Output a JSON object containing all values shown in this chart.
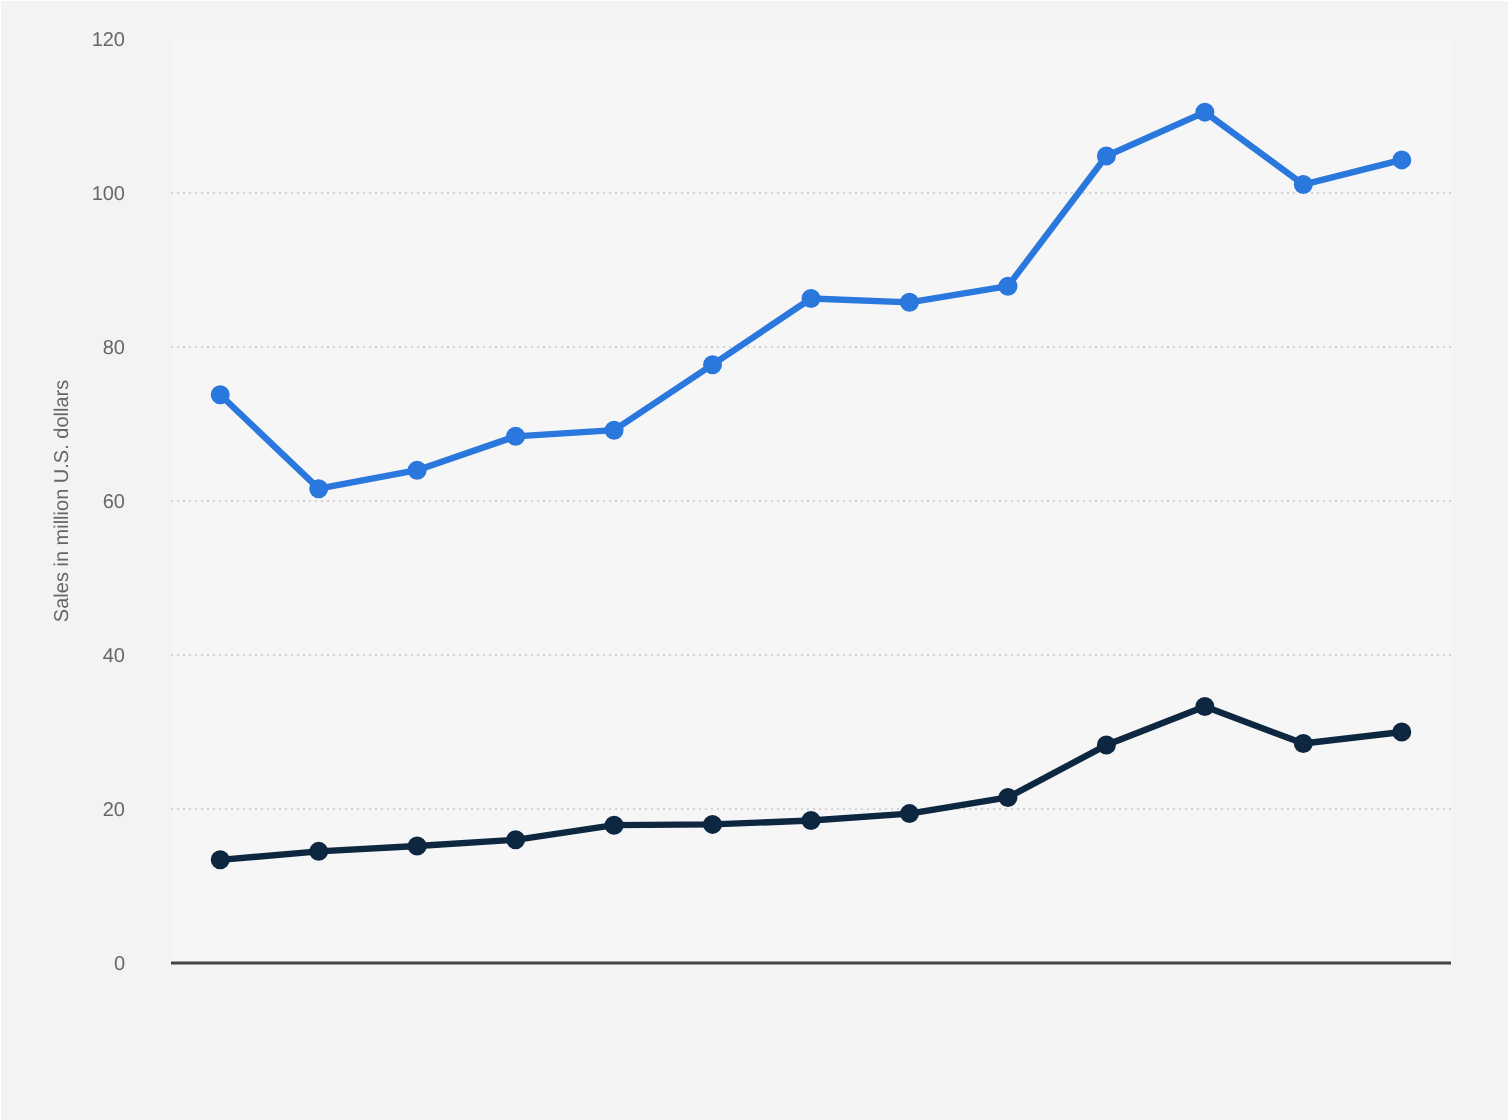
{
  "chart_data": {
    "type": "line",
    "ylabel": "Sales in million U.S. dollars",
    "categories": [
      null,
      null,
      null,
      null,
      null,
      null,
      null,
      null,
      null,
      null,
      null,
      null,
      null
    ],
    "series": [
      {
        "color": "#2a78de",
        "values": [
          73.8,
          61.6,
          64.0,
          68.4,
          69.2,
          77.7,
          86.3,
          85.8,
          87.9,
          104.8,
          110.5,
          101.1,
          104.3
        ]
      },
      {
        "color": "#0d2740",
        "values": [
          13.4,
          14.5,
          15.2,
          16.0,
          17.9,
          18.0,
          18.5,
          19.4,
          21.5,
          28.3,
          33.3,
          28.5,
          30.0
        ]
      }
    ],
    "ylim": [
      0,
      120
    ],
    "yticks": [
      0,
      20,
      40,
      60,
      80,
      100,
      120
    ],
    "grid": "y",
    "tick_labels": "y",
    "marker": "circle",
    "line_style": "solid"
  }
}
